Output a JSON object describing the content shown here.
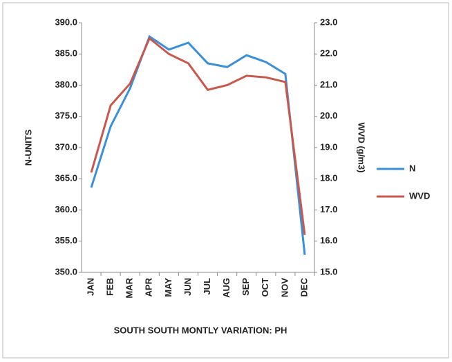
{
  "chart_data": {
    "type": "line",
    "title": "SOUTH SOUTH MONTLY VARIATION: PH",
    "y_label": "N-UNITS",
    "y2_label": "WVD (g/m3)",
    "categories": [
      "JAN",
      "FEB",
      "MAR",
      "APR",
      "MAY",
      "JUN",
      "JUL",
      "AUG",
      "SEP",
      "OCT",
      "NOV",
      "DEC"
    ],
    "series": [
      {
        "name": "N",
        "color": "#3a8fd9",
        "values": [
          363.6,
          373.4,
          379.5,
          387.8,
          385.7,
          386.8,
          383.5,
          382.9,
          384.8,
          383.7,
          381.8,
          352.8
        ]
      },
      {
        "name": "WVD",
        "color": "#c9574c",
        "axis": "y2",
        "values": [
          18.2,
          20.35,
          21.05,
          22.5,
          22.0,
          21.7,
          20.85,
          21.0,
          21.3,
          21.25,
          21.1,
          16.2
        ]
      }
    ],
    "ylim": [
      350,
      390
    ],
    "yticks": [
      {
        "value": 350,
        "label": "350.0"
      },
      {
        "value": 355,
        "label": "355.0"
      },
      {
        "value": 360,
        "label": "360.0"
      },
      {
        "value": 365,
        "label": "365.0"
      },
      {
        "value": 370,
        "label": "370.0"
      },
      {
        "value": 375,
        "label": "375.0"
      },
      {
        "value": 380,
        "label": "380.0"
      },
      {
        "value": 385,
        "label": "385.0"
      },
      {
        "value": 390,
        "label": "390.0"
      }
    ],
    "y2lim": [
      15,
      23
    ],
    "y2ticks": [
      {
        "value": 15,
        "label": "15.0"
      },
      {
        "value": 16,
        "label": "16.0"
      },
      {
        "value": 17,
        "label": "17.0"
      },
      {
        "value": 18,
        "label": "18.0"
      },
      {
        "value": 19,
        "label": "19.0"
      },
      {
        "value": 20,
        "label": "20.0"
      },
      {
        "value": 21,
        "label": "21.0"
      },
      {
        "value": 22,
        "label": "22.0"
      },
      {
        "value": 23,
        "label": "23.0"
      }
    ],
    "grid": false,
    "legend": "right"
  }
}
